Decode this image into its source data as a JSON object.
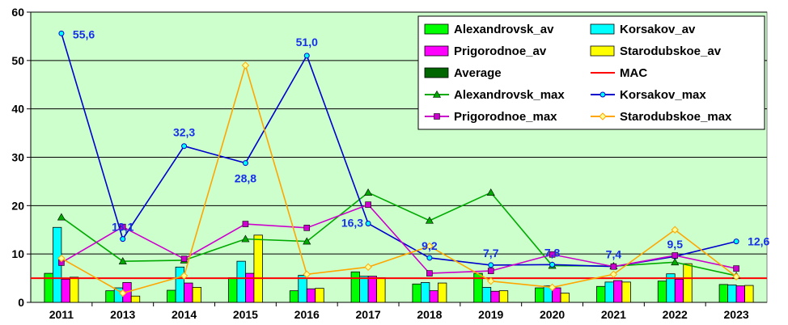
{
  "chart_data": {
    "type": "bar",
    "categories": [
      "2011",
      "2013",
      "2014",
      "2015",
      "2016",
      "2017",
      "2018",
      "2019",
      "2020",
      "2021",
      "2022",
      "2023"
    ],
    "ylim": [
      0,
      60
    ],
    "yticks": [
      0,
      10,
      20,
      30,
      40,
      50,
      60
    ],
    "grid": true,
    "plot_background": "#ccffcc",
    "legend_position": "top-right",
    "bar_series": [
      {
        "name": "Alexandrovsk_av",
        "color": "#00ff00",
        "values": [
          6.0,
          2.4,
          2.5,
          5.1,
          2.4,
          6.3,
          3.8,
          6.0,
          3.0,
          3.3,
          4.4,
          3.7
        ]
      },
      {
        "name": "Korsakov_av",
        "color": "#00ffff",
        "values": [
          15.5,
          3.0,
          7.3,
          8.5,
          5.6,
          5.4,
          4.1,
          3.1,
          3.4,
          4.2,
          5.9,
          3.6
        ]
      },
      {
        "name": "Prigorodnoe_av",
        "color": "#ff00ff",
        "values": [
          4.8,
          4.1,
          4.0,
          6.0,
          2.8,
          5.4,
          2.4,
          2.3,
          3.0,
          4.5,
          4.8,
          3.4
        ]
      },
      {
        "name": "Starodubskoe_av",
        "color": "#ffff00",
        "values": [
          5.2,
          1.3,
          3.1,
          13.9,
          2.9,
          5.1,
          4.0,
          2.4,
          1.9,
          4.2,
          8.0,
          3.5
        ]
      }
    ],
    "average_legend": {
      "name": "Average",
      "color": "#006600"
    },
    "mac": {
      "name": "MAC",
      "value": 5.0,
      "color": "#ff0000"
    },
    "line_series": [
      {
        "name": "Alexandrovsk_max",
        "color": "#00aa00",
        "marker": "triangle",
        "values": [
          17.6,
          8.5,
          8.7,
          13.1,
          12.6,
          22.7,
          16.9,
          22.7,
          7.6,
          7.5,
          8.3,
          5.5
        ]
      },
      {
        "name": "Korsakov_max",
        "color": "#0000cc",
        "marker": "circle",
        "values": [
          55.6,
          13.1,
          32.3,
          28.8,
          51.0,
          16.3,
          9.2,
          7.7,
          7.8,
          7.4,
          9.5,
          12.6
        ]
      },
      {
        "name": "Prigorodnoe_max",
        "color": "#cc00cc",
        "marker": "square",
        "values": [
          8.2,
          15.6,
          9.0,
          16.2,
          15.4,
          20.2,
          6.0,
          6.5,
          9.9,
          7.4,
          9.7,
          7.0
        ]
      },
      {
        "name": "Starodubskoe_max",
        "color": "#ffa500",
        "marker": "diamond",
        "values": [
          9.1,
          1.9,
          5.5,
          49.0,
          5.8,
          7.3,
          11.6,
          4.4,
          3.1,
          5.8,
          15.0,
          5.3
        ]
      }
    ],
    "data_labels": [
      {
        "text": "55,6",
        "category": "2011"
      },
      {
        "text": "13,1",
        "category": "2013"
      },
      {
        "text": "32,3",
        "category": "2014"
      },
      {
        "text": "28,8",
        "category": "2015"
      },
      {
        "text": "51,0",
        "category": "2016"
      },
      {
        "text": "16,3",
        "category": "2017"
      },
      {
        "text": "9,2",
        "category": "2018"
      },
      {
        "text": "7,7",
        "category": "2019"
      },
      {
        "text": "7,8",
        "category": "2020"
      },
      {
        "text": "7,4",
        "category": "2021"
      },
      {
        "text": "9,5",
        "category": "2022"
      },
      {
        "text": "12,6",
        "category": "2023"
      }
    ]
  }
}
